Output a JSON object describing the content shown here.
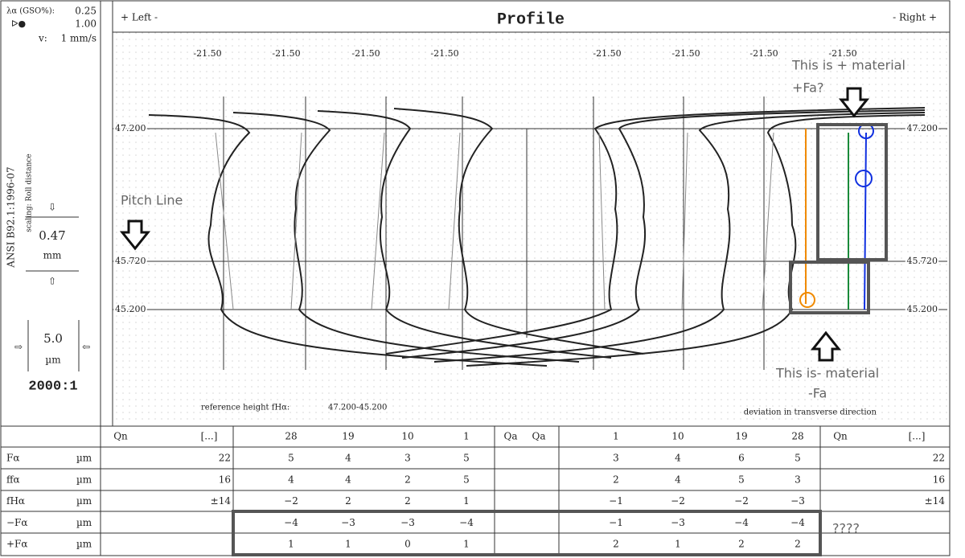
{
  "left_panel": {
    "lambda_label": "λα (GSO%):",
    "lambda_value": "0.25",
    "filter_value": "1.00",
    "speed_label": "v:",
    "speed_value": "1 mm/s",
    "standard": "ANSI B92.1:1996-07",
    "scaling": "scaling: Roll distance",
    "scale_value": "0.47",
    "scale_unit": "mm",
    "deviation_value": "5.0",
    "deviation_unit": "µm",
    "magnification": "2000:1"
  },
  "header": {
    "left": "+ Left -",
    "title": "Profile",
    "right": "- Right +"
  },
  "top_values": [
    "-21.50",
    "-21.50",
    "-21.50",
    "-21.50",
    "-21.50",
    "-21.50",
    "-21.50",
    "-21.50"
  ],
  "y_labels": [
    "47.200",
    "45.720",
    "45.200"
  ],
  "annotations": {
    "pitch_line": "Pitch Line",
    "plus_material": "This is + material",
    "plus_fa": "+Fa?",
    "minus_material": "This is- material",
    "minus_fa": "-Fa",
    "question": "????"
  },
  "footer": {
    "reference_label": "reference height fHα:",
    "reference_value": "47.200-45.200",
    "deviation_note": "deviation in transverse direction"
  },
  "table": {
    "header": [
      "Qn",
      "[...]",
      "28",
      "19",
      "10",
      "1",
      "Qa",
      "Qa",
      "1",
      "10",
      "19",
      "28",
      "Qn",
      "[...]"
    ],
    "rows": [
      {
        "symbol": "Fα",
        "unit": "µm",
        "cells": [
          "22",
          "5",
          "4",
          "3",
          "5",
          null,
          "3",
          "4",
          "6",
          "5",
          "22"
        ]
      },
      {
        "symbol": "ffα",
        "unit": "µm",
        "cells": [
          "16",
          "4",
          "4",
          "2",
          "5",
          null,
          "2",
          "4",
          "5",
          "3",
          "16"
        ]
      },
      {
        "symbol": "fHα",
        "unit": "µm",
        "cells": [
          "±14",
          "−2",
          "2",
          "2",
          "1",
          null,
          "−1",
          "−2",
          "−2",
          "−3",
          "±14"
        ]
      },
      {
        "symbol": "−Fα",
        "unit": "µm",
        "cells": [
          null,
          "−4",
          "−3",
          "−3",
          "−4",
          null,
          "−1",
          "−3",
          "−4",
          "−4",
          null
        ]
      },
      {
        "symbol": "+Fα",
        "unit": "µm",
        "cells": [
          null,
          "1",
          "1",
          "0",
          "1",
          null,
          "2",
          "1",
          "2",
          "2",
          null
        ]
      }
    ]
  }
}
